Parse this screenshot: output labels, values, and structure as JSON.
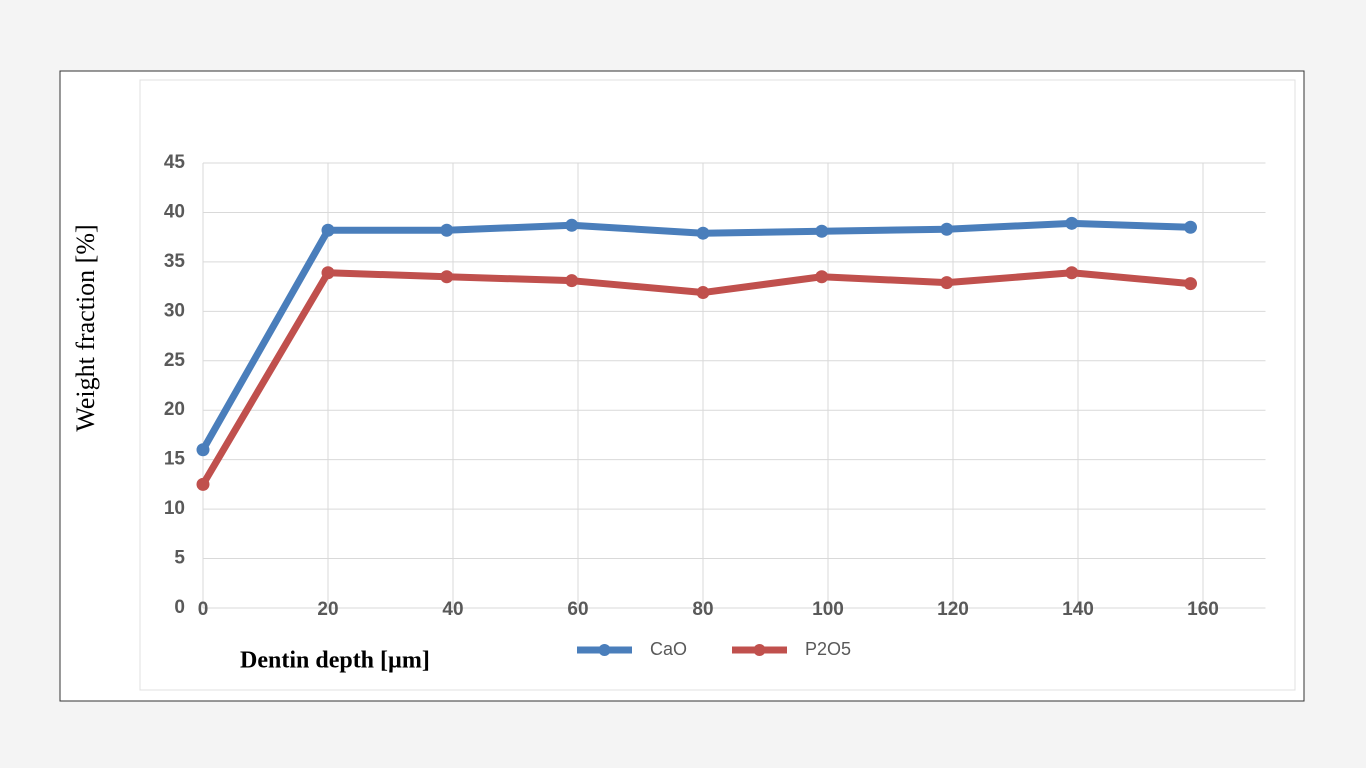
{
  "chart_data": {
    "type": "line",
    "xlabel": "Dentin depth [µm]",
    "ylabel": "Weight  fraction [%]",
    "x": [
      0,
      20,
      39,
      59,
      80,
      99,
      119,
      139,
      158
    ],
    "series": [
      {
        "name": "CaO",
        "color": "#4a7ebb",
        "values": [
          16,
          38.2,
          38.2,
          38.7,
          37.9,
          38.1,
          38.3,
          38.9,
          38.5
        ]
      },
      {
        "name": "P2O5",
        "color": "#c0504d",
        "values": [
          12.5,
          33.9,
          33.5,
          33.1,
          31.9,
          33.5,
          32.9,
          33.9,
          32.8
        ]
      }
    ],
    "xlim": [
      0,
      170
    ],
    "xticks": [
      0,
      20,
      40,
      60,
      80,
      100,
      120,
      140,
      160
    ],
    "ylim": [
      0,
      45
    ],
    "yticks": [
      0,
      5,
      10,
      15,
      20,
      25,
      30,
      35,
      40,
      45
    ],
    "grid": true,
    "legend": "bottom"
  }
}
